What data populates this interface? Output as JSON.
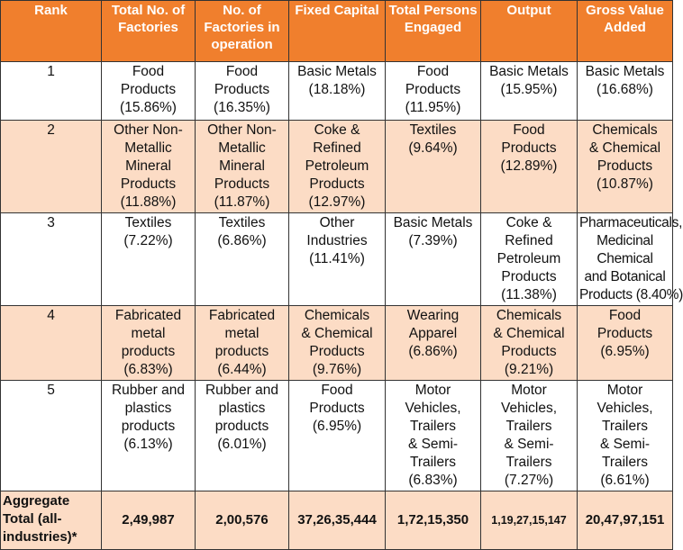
{
  "header": {
    "rank": "Rank",
    "total_factories": "Total No. of Factories",
    "factories_operation": "No. of Factories in operation",
    "fixed_capital": "Fixed Capital",
    "persons_engaged": "Total Persons Engaged",
    "output": "Output",
    "gva": "Gross Value Added"
  },
  "rows": [
    {
      "rank": "1",
      "total_factories": [
        "Food",
        "Products",
        "(15.86%)"
      ],
      "factories_operation": [
        "Food",
        "Products",
        "(16.35%)"
      ],
      "fixed_capital": [
        "Basic Metals",
        "(18.18%)"
      ],
      "persons_engaged": [
        "Food",
        "Products",
        "(11.95%)"
      ],
      "output": [
        "Basic Metals",
        "(15.95%)"
      ],
      "gva": [
        "Basic Metals",
        "(16.68%)"
      ]
    },
    {
      "rank": "2",
      "total_factories": [
        "Other Non-",
        "Metallic",
        "Mineral",
        "Products",
        "(11.88%)"
      ],
      "factories_operation": [
        "Other Non-",
        "Metallic",
        "Mineral",
        "Products",
        "(11.87%)"
      ],
      "fixed_capital": [
        "Coke &",
        "Refined",
        "Petroleum",
        "Products",
        "(12.97%)"
      ],
      "persons_engaged": [
        "Textiles",
        "(9.64%)"
      ],
      "output": [
        "Food",
        "Products",
        "(12.89%)"
      ],
      "gva": [
        "Chemicals",
        "& Chemical",
        "Products",
        "(10.87%)"
      ]
    },
    {
      "rank": "3",
      "total_factories": [
        "Textiles",
        "(7.22%)"
      ],
      "factories_operation": [
        "Textiles",
        "(6.86%)"
      ],
      "fixed_capital": [
        "Other",
        "Industries",
        "(11.41%)"
      ],
      "persons_engaged": [
        "Basic Metals",
        "(7.39%)"
      ],
      "output": [
        "Coke &",
        "Refined",
        "Petroleum",
        "Products",
        "(11.38%)"
      ],
      "gva": [
        "Pharmaceuticals,",
        "Medicinal",
        "Chemical",
        "and Botanical",
        "Products (8.40%)"
      ]
    },
    {
      "rank": "4",
      "total_factories": [
        "Fabricated",
        "metal",
        "products",
        "(6.83%)"
      ],
      "factories_operation": [
        "Fabricated",
        "metal",
        "products",
        "(6.44%)"
      ],
      "fixed_capital": [
        "Chemicals",
        "& Chemical",
        "Products",
        "(9.76%)"
      ],
      "persons_engaged": [
        "Wearing",
        "Apparel",
        "(6.86%)"
      ],
      "output": [
        "Chemicals",
        "& Chemical",
        "Products",
        "(9.21%)"
      ],
      "gva": [
        "Food",
        "Products",
        "(6.95%)"
      ]
    },
    {
      "rank": "5",
      "total_factories": [
        "Rubber and",
        "plastics",
        "products",
        "(6.13%)"
      ],
      "factories_operation": [
        "Rubber and",
        "plastics",
        "products",
        "(6.01%)"
      ],
      "fixed_capital": [
        "Food",
        "Products",
        "(6.95%)"
      ],
      "persons_engaged": [
        "Motor",
        "Vehicles,",
        "Trailers",
        "& Semi-",
        "Trailers",
        "(6.83%)"
      ],
      "output": [
        "Motor",
        "Vehicles,",
        "Trailers",
        "& Semi-",
        "Trailers",
        "(7.27%)"
      ],
      "gva": [
        "Motor",
        "Vehicles,",
        "Trailers",
        "& Semi-",
        "Trailers",
        "(6.61%)"
      ]
    }
  ],
  "total": {
    "label": "Aggregate Total (all-industries)*",
    "total_factories": "2,49,987",
    "factories_operation": "2,00,576",
    "fixed_capital": "37,26,35,444",
    "persons_engaged": "1,72,15,350",
    "output": "1,19,27,15,147",
    "gva": "20,47,97,151"
  },
  "colors": {
    "header_bg": "#f07f2d",
    "header_text": "#ffffff",
    "tint_row": "#fcdcc5",
    "white_row": "#ffffff"
  }
}
